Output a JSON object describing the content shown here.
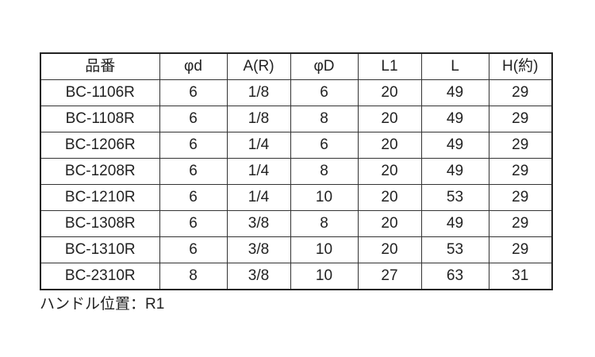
{
  "table": {
    "headers": [
      "品番",
      "φd",
      "A(R)",
      "φD",
      "L1",
      "L",
      "H(約)"
    ],
    "rows": [
      [
        "BC-1106R",
        "6",
        "1/8",
        "6",
        "20",
        "49",
        "29"
      ],
      [
        "BC-1108R",
        "6",
        "1/8",
        "8",
        "20",
        "49",
        "29"
      ],
      [
        "BC-1206R",
        "6",
        "1/4",
        "6",
        "20",
        "49",
        "29"
      ],
      [
        "BC-1208R",
        "6",
        "1/4",
        "8",
        "20",
        "49",
        "29"
      ],
      [
        "BC-1210R",
        "6",
        "1/4",
        "10",
        "20",
        "53",
        "29"
      ],
      [
        "BC-1308R",
        "6",
        "3/8",
        "8",
        "20",
        "49",
        "29"
      ],
      [
        "BC-1310R",
        "6",
        "3/8",
        "10",
        "20",
        "53",
        "29"
      ],
      [
        "BC-2310R",
        "8",
        "3/8",
        "10",
        "27",
        "63",
        "31"
      ]
    ]
  },
  "note": "ハンドル位置：R1"
}
